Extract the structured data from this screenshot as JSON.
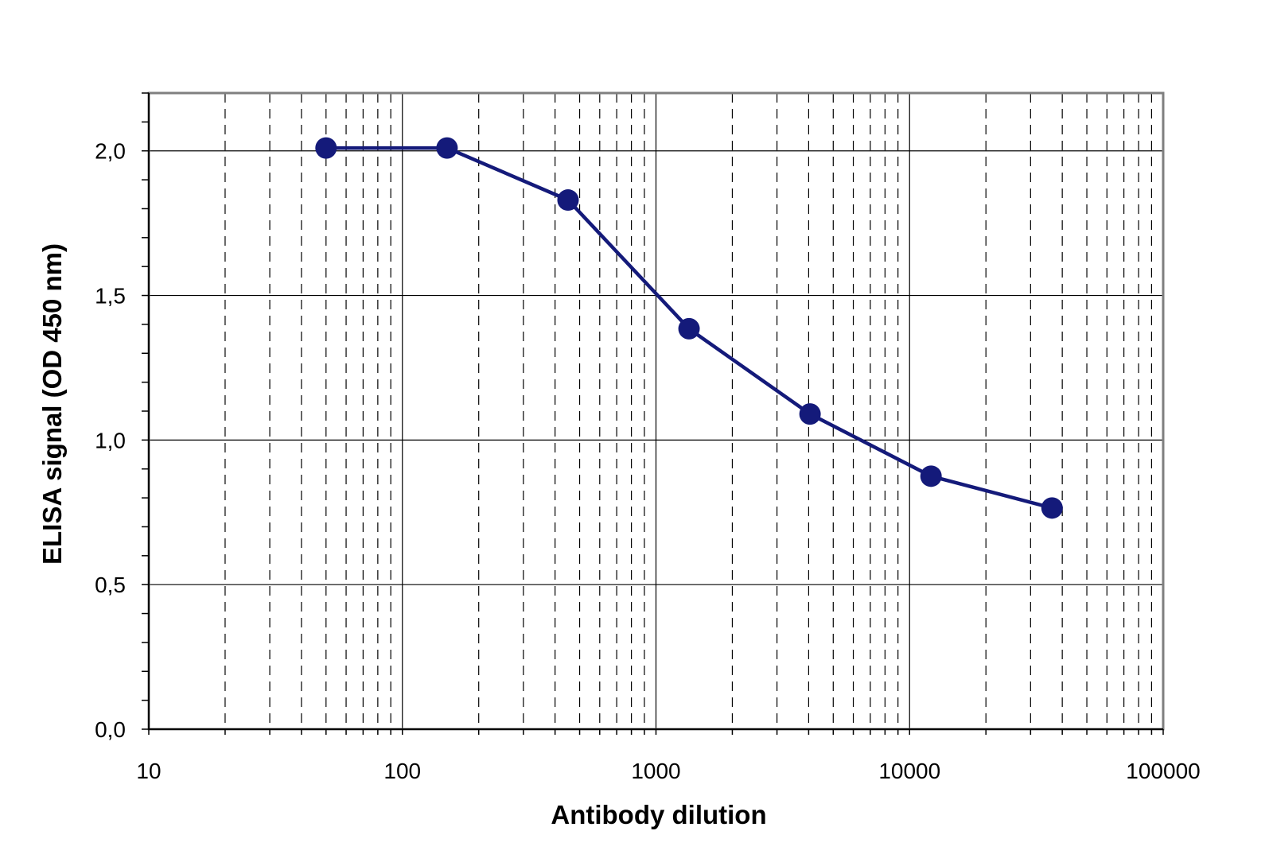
{
  "chart_data": {
    "type": "line",
    "title": "",
    "xlabel": "Antibody dilution",
    "ylabel": "ELISA signal (OD 450 nm)",
    "x_scale": "log",
    "xlim": [
      10,
      100000
    ],
    "ylim": [
      0,
      2.2
    ],
    "x_ticks": [
      10,
      100,
      1000,
      10000,
      100000
    ],
    "x_tick_labels": [
      "10",
      "100",
      "1000",
      "10000",
      "100000"
    ],
    "y_ticks": [
      0,
      0.5,
      1.0,
      1.5,
      2.0
    ],
    "y_tick_labels": [
      "0,0",
      "0,5",
      "1,0",
      "1,5",
      "2,0"
    ],
    "y_minor_step": 0.1,
    "grid": {
      "x_major": "solid",
      "x_minor": "dashed",
      "y_major": "solid"
    },
    "legend": "none",
    "series": [
      {
        "color": "#141a7a",
        "marker": "circle",
        "x": [
          50,
          150,
          450,
          1350,
          4050,
          12150,
          36450
        ],
        "y": [
          2.01,
          2.01,
          1.83,
          1.385,
          1.09,
          0.875,
          0.765
        ]
      }
    ]
  }
}
